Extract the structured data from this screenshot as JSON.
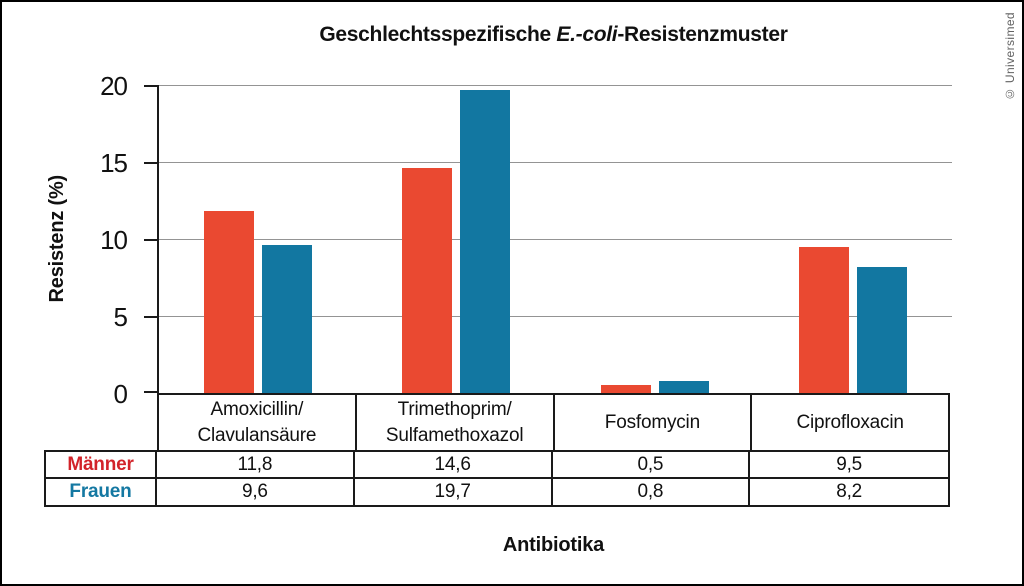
{
  "title": {
    "prefix": "Geschlechtsspezifische ",
    "italic": "E.-coli",
    "suffix": "-Resistenzmuster"
  },
  "credit": "© Universimed",
  "axes": {
    "y_label": "Resistenz (%)",
    "x_label": "Antibiotika"
  },
  "colors": {
    "maenner_bar": "#ea4931",
    "frauen_bar": "#1277a1",
    "maenner_label": "#d2232a",
    "frauen_label": "#1478a2",
    "gridline": "#949494",
    "table_border": "#1a1a1a",
    "credit_text": "#636363"
  },
  "chart_data": {
    "type": "bar",
    "title": "Geschlechtsspezifische E.-coli-Resistenzmuster",
    "xlabel": "Antibiotika",
    "ylabel": "Resistenz (%)",
    "ylim": [
      0,
      20
    ],
    "yticks": [
      0,
      5,
      10,
      15,
      20
    ],
    "grid": true,
    "legend_position": "table-row-headers",
    "categories": [
      "Amoxicillin/\nClavulansäure",
      "Trimethoprim/\nSulfamethoxazol",
      "Fosfomycin",
      "Ciprofloxacin"
    ],
    "series": [
      {
        "name": "Männer",
        "values": [
          11.8,
          14.6,
          0.5,
          9.5
        ],
        "display_values": [
          "11,8",
          "14,6",
          "0,5",
          "9,5"
        ],
        "color": "#ea4931",
        "label_color": "#d2232a"
      },
      {
        "name": "Frauen",
        "values": [
          9.6,
          19.7,
          0.8,
          8.2
        ],
        "display_values": [
          "9,6",
          "19,7",
          "0,8",
          "8,2"
        ],
        "color": "#1277a1",
        "label_color": "#1478a2"
      }
    ]
  }
}
